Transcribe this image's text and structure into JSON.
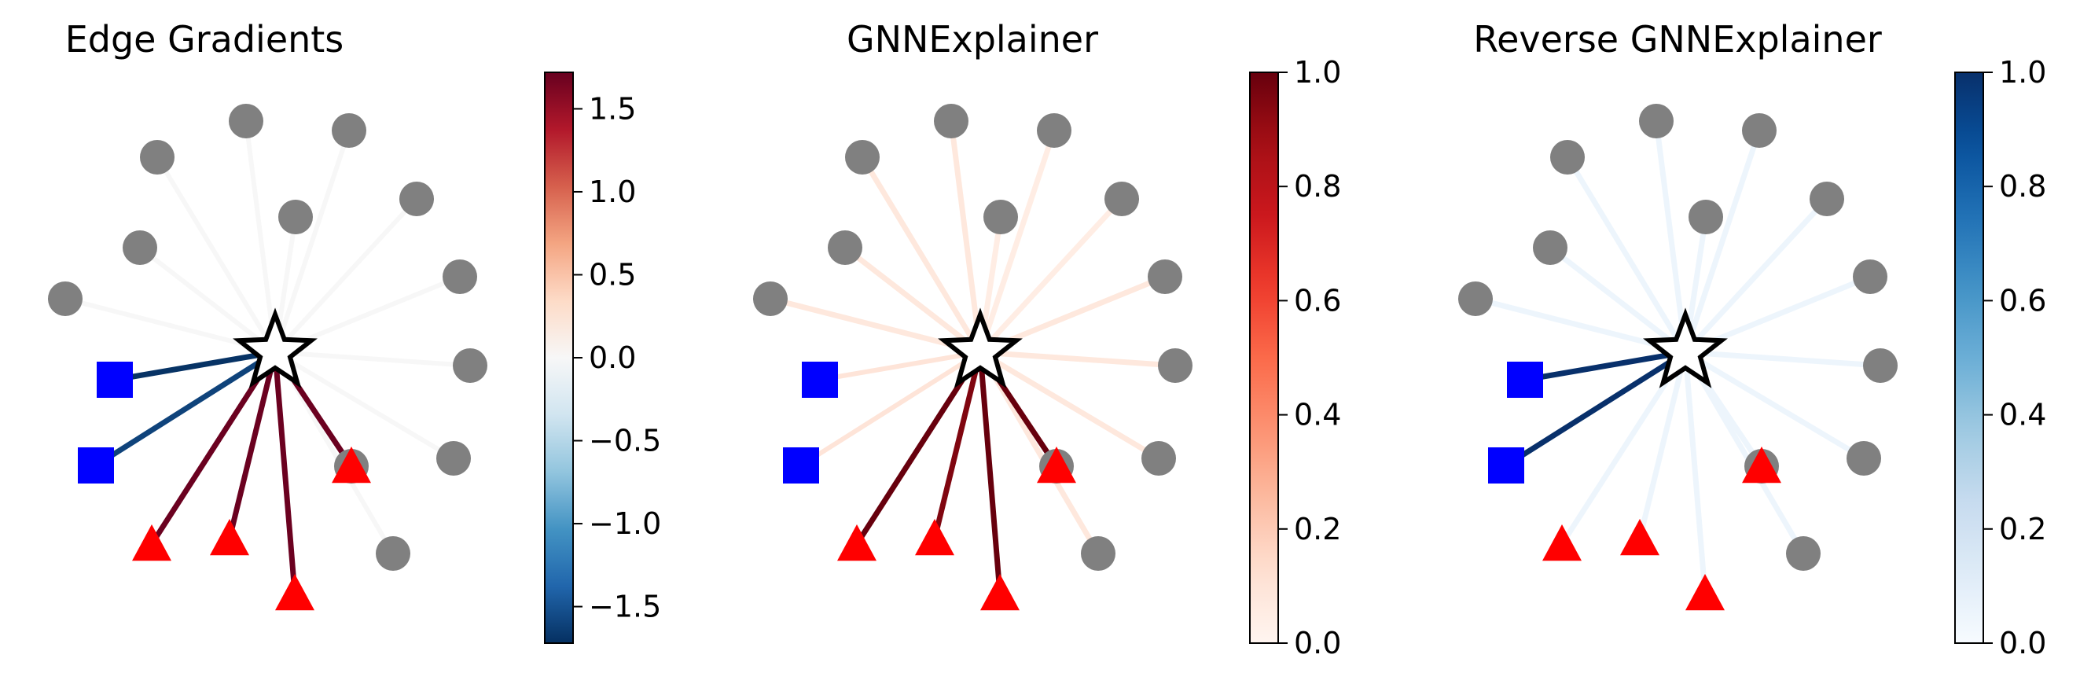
{
  "panels": [
    {
      "title": "Edge Gradients",
      "colormap": "RdBu_r",
      "colorbar": {
        "min": -1.72,
        "max": 1.72,
        "ticks": [
          -1.5,
          -1.0,
          -0.5,
          0.0,
          0.5,
          1.0,
          1.5
        ],
        "tick_labels": [
          "−1.5",
          "−1.0",
          "−0.5",
          "0.0",
          "0.5",
          "1.0",
          "1.5"
        ]
      },
      "edge_values": [
        0.0,
        0.0,
        0.0,
        0.0,
        0.0,
        0.0,
        0.0,
        0.0,
        0.0,
        0.0,
        0.0,
        0.05,
        -1.7,
        -1.6,
        1.7,
        1.7,
        1.7,
        1.7
      ]
    },
    {
      "title": "GNNExplainer",
      "colormap": "Reds",
      "colorbar": {
        "min": 0.0,
        "max": 1.0,
        "ticks": [
          0.0,
          0.2,
          0.4,
          0.6,
          0.8,
          1.0
        ],
        "tick_labels": [
          "0.0",
          "0.2",
          "0.4",
          "0.6",
          "0.8",
          "1.0"
        ]
      },
      "edge_values": [
        0.08,
        0.08,
        0.08,
        0.08,
        0.05,
        0.05,
        0.05,
        0.08,
        0.08,
        0.08,
        0.08,
        0.08,
        0.1,
        0.1,
        1.0,
        0.95,
        1.0,
        1.0
      ]
    },
    {
      "title": "Reverse GNNExplainer",
      "colormap": "Blues",
      "colorbar": {
        "min": 0.0,
        "max": 1.0,
        "ticks": [
          0.0,
          0.2,
          0.4,
          0.6,
          0.8,
          1.0
        ],
        "tick_labels": [
          "0.0",
          "0.2",
          "0.4",
          "0.6",
          "0.8",
          "1.0"
        ]
      },
      "edge_values": [
        0.05,
        0.05,
        0.05,
        0.05,
        0.05,
        0.05,
        0.05,
        0.05,
        0.05,
        0.05,
        0.05,
        0.05,
        1.0,
        1.0,
        0.05,
        0.05,
        0.05,
        0.05
      ]
    }
  ],
  "graph": {
    "center_node": "star",
    "nodes": [
      {
        "id": 0,
        "shape": "circle",
        "color": "#808080"
      },
      {
        "id": 1,
        "shape": "circle",
        "color": "#808080"
      },
      {
        "id": 2,
        "shape": "circle",
        "color": "#808080"
      },
      {
        "id": 3,
        "shape": "circle",
        "color": "#808080"
      },
      {
        "id": 4,
        "shape": "circle",
        "color": "#808080"
      },
      {
        "id": 5,
        "shape": "circle",
        "color": "#808080"
      },
      {
        "id": 6,
        "shape": "circle",
        "color": "#808080"
      },
      {
        "id": 7,
        "shape": "circle",
        "color": "#808080"
      },
      {
        "id": 8,
        "shape": "circle",
        "color": "#808080"
      },
      {
        "id": 9,
        "shape": "circle",
        "color": "#808080"
      },
      {
        "id": 10,
        "shape": "circle",
        "color": "#808080"
      },
      {
        "id": 11,
        "shape": "circle",
        "color": "#808080"
      },
      {
        "id": 12,
        "shape": "square",
        "color": "#0000ff"
      },
      {
        "id": 13,
        "shape": "square",
        "color": "#0000ff"
      },
      {
        "id": 14,
        "shape": "triangle",
        "color": "#ff0000"
      },
      {
        "id": 15,
        "shape": "triangle",
        "color": "#ff0000"
      },
      {
        "id": 16,
        "shape": "triangle",
        "color": "#ff0000"
      },
      {
        "id": 17,
        "shape": "triangle",
        "color": "#ff0000"
      }
    ]
  }
}
